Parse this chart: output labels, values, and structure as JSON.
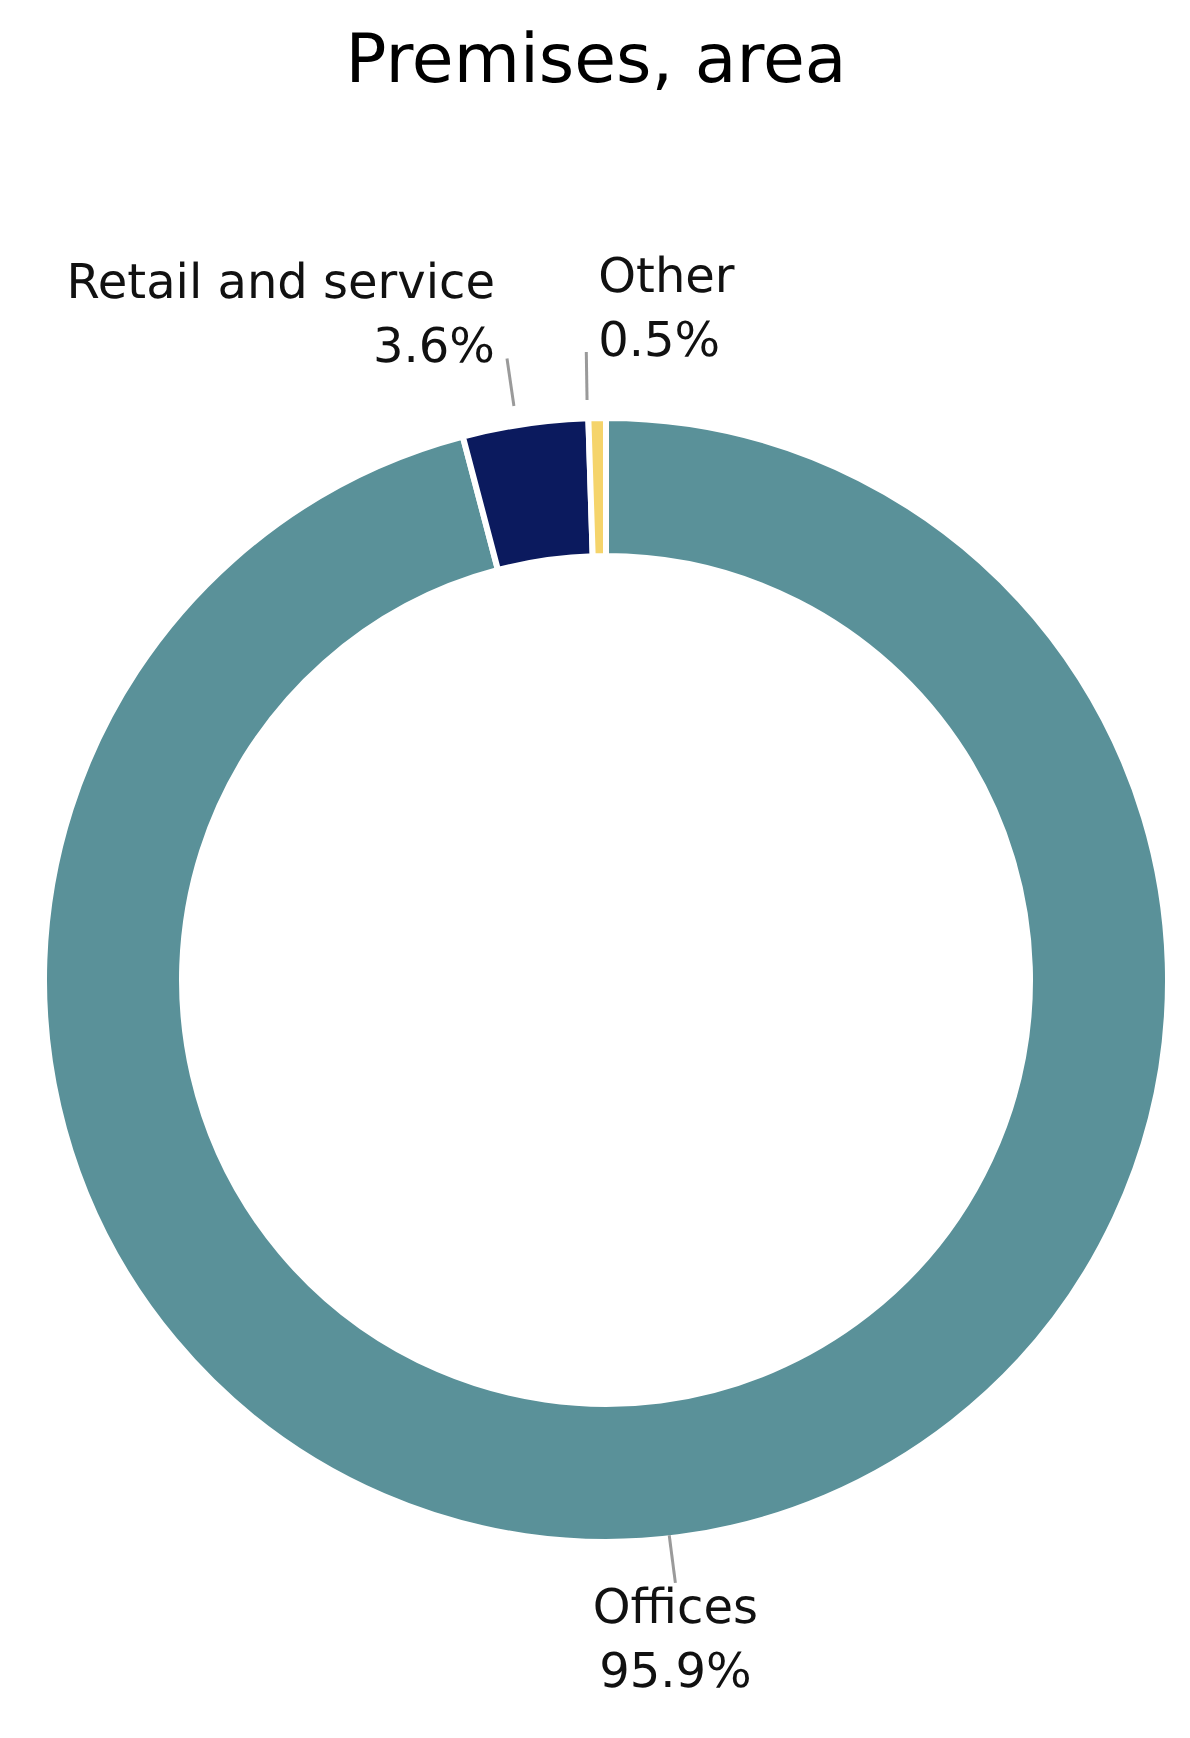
{
  "chart_data": {
    "type": "donut",
    "title": "Premises, area",
    "categories": [
      "Offices",
      "Retail and service",
      "Other"
    ],
    "values": [
      95.9,
      3.6,
      0.5
    ],
    "value_labels": [
      "95.9%",
      "3.6%",
      "0.5%"
    ],
    "colors": [
      "#5a9199",
      "#0b1a5e",
      "#f5d46b"
    ],
    "legend": false
  }
}
